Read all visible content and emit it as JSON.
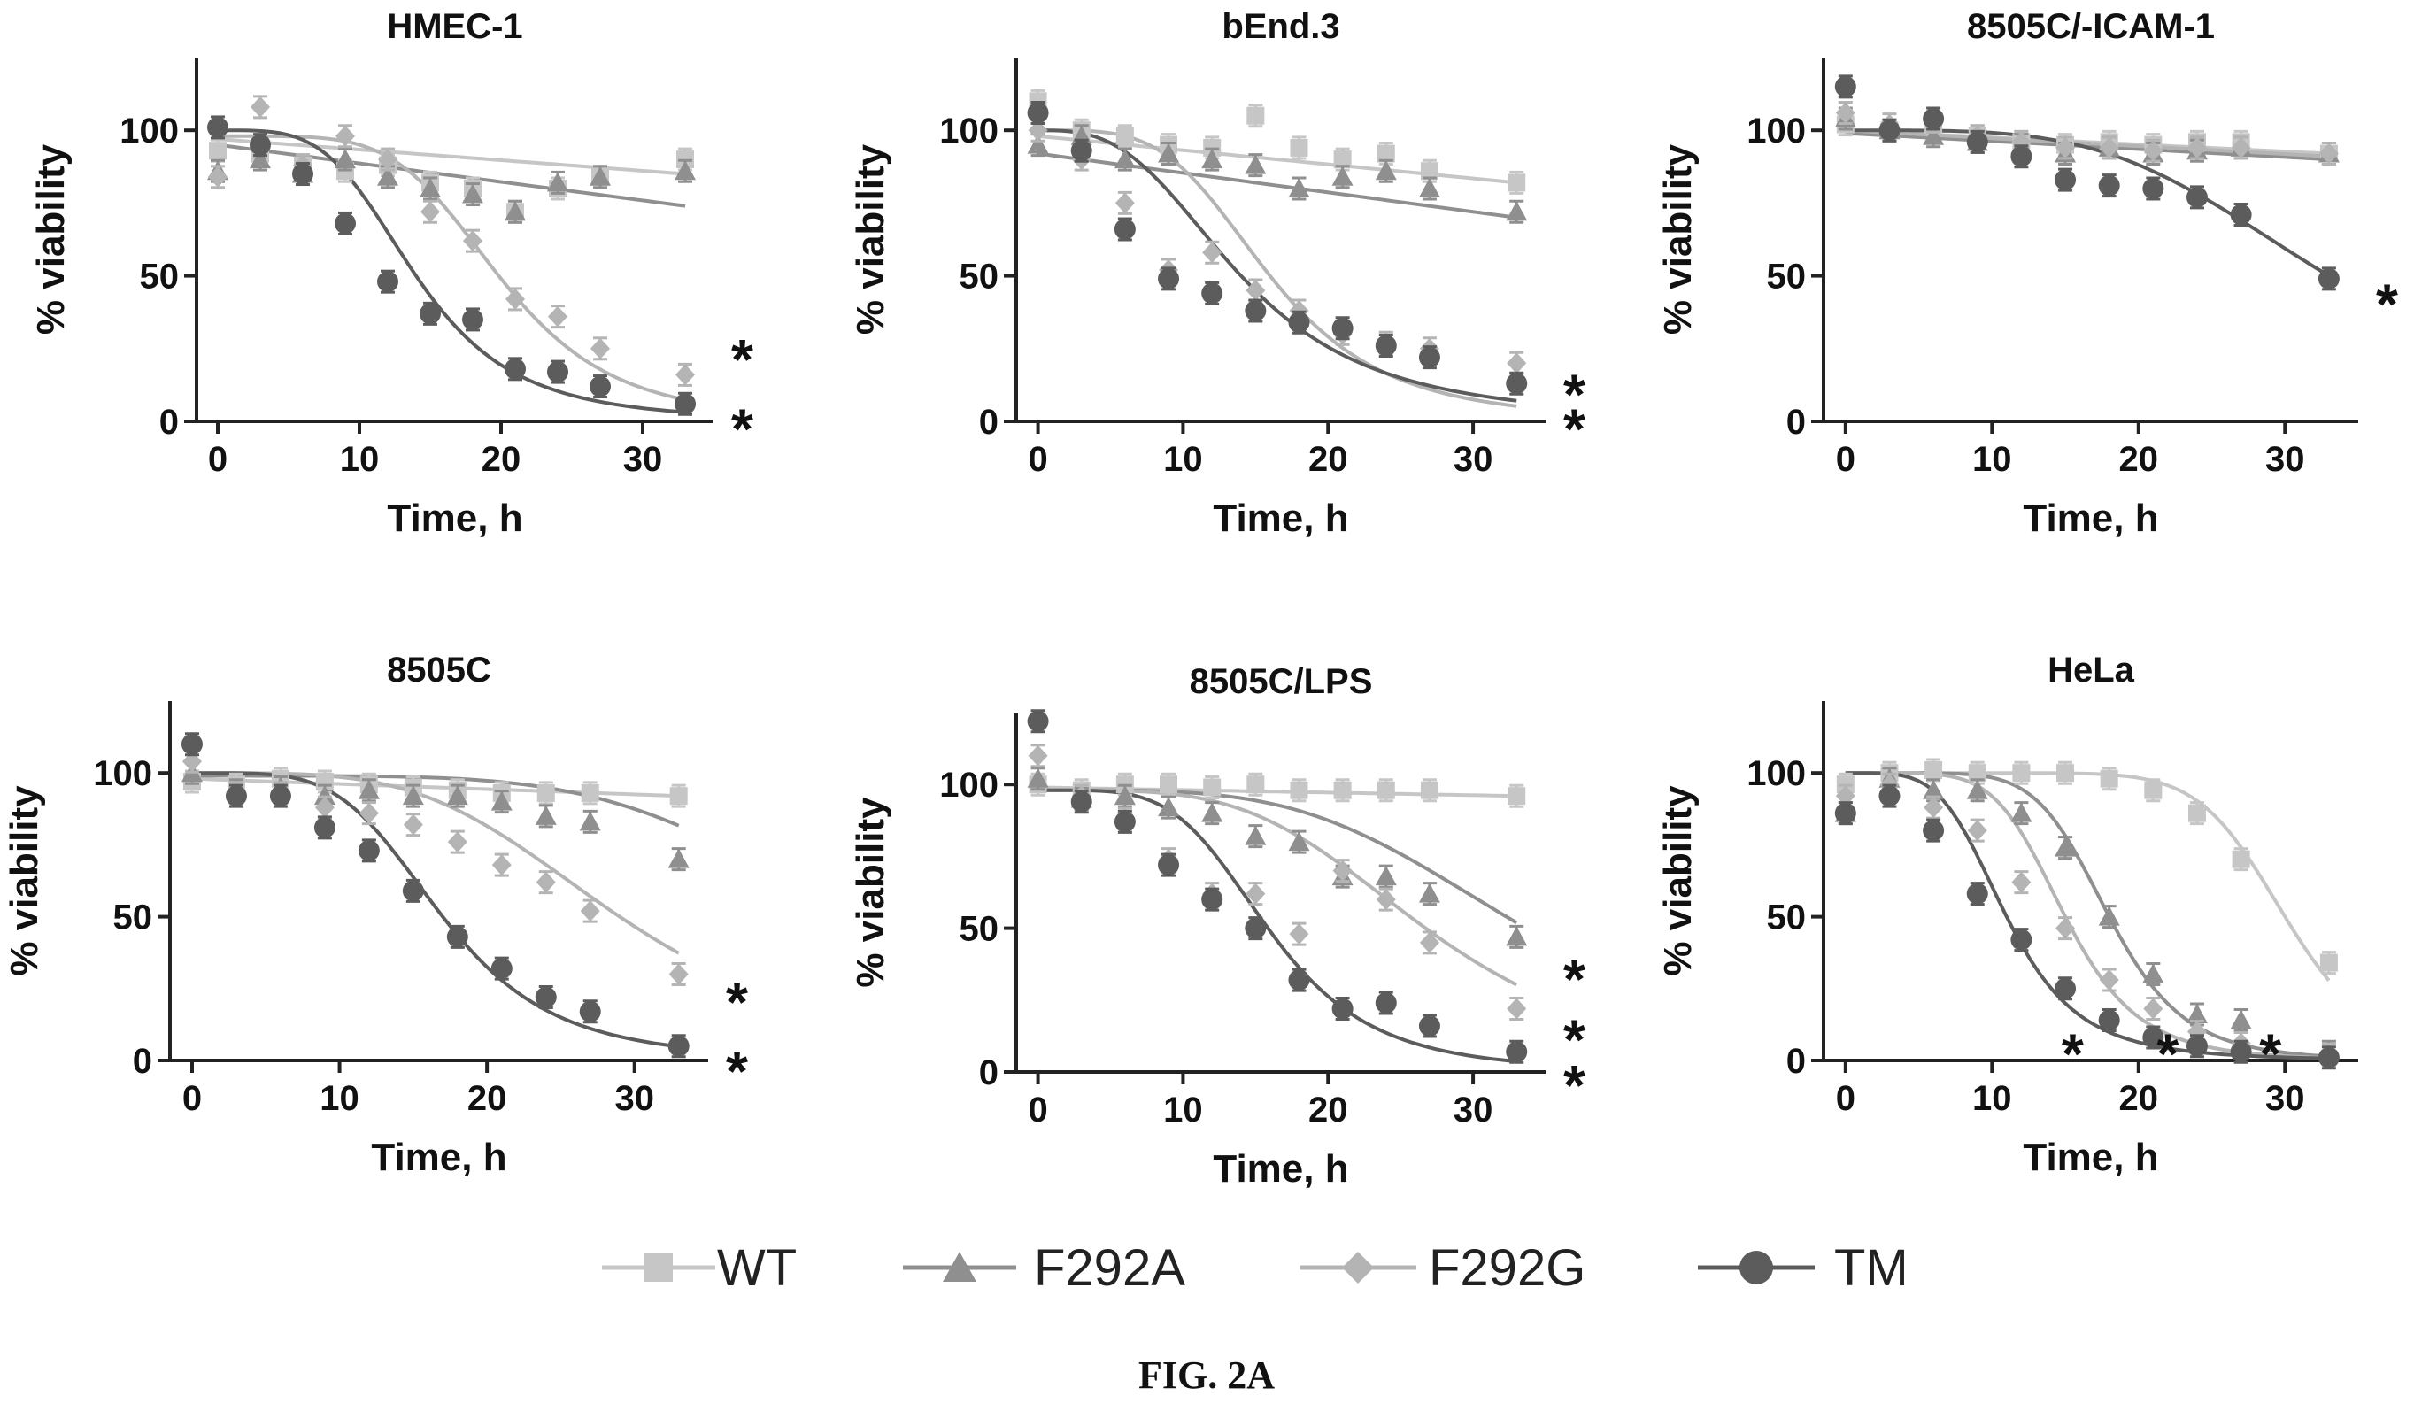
{
  "figure": {
    "caption": "FIG. 2A"
  },
  "legend": [
    {
      "label": "WT",
      "color": "#c6c6c6",
      "marker": "square"
    },
    {
      "label": "F292A",
      "color": "#8f8f8f",
      "marker": "triangle"
    },
    {
      "label": "F292G",
      "color": "#b4b4b4",
      "marker": "diamond"
    },
    {
      "label": "TM",
      "color": "#5c5c5c",
      "marker": "circle"
    }
  ],
  "chart_data": [
    {
      "type": "scatter",
      "title": "HMEC-1",
      "xlabel": "Time, h",
      "ylabel": "% viability",
      "xlim": [
        -1.5,
        35
      ],
      "ylim": [
        0,
        125
      ],
      "xticks": [
        0,
        10,
        20,
        30
      ],
      "yticks": [
        0,
        50,
        100
      ],
      "x": [
        0,
        3,
        6,
        9,
        12,
        15,
        18,
        21,
        24,
        27,
        33
      ],
      "series": [
        {
          "name": "WT",
          "values": [
            93,
            92,
            88,
            86,
            88,
            82,
            80,
            72,
            80,
            84,
            90
          ],
          "fit": [
            97,
            85,
            0,
            1
          ]
        },
        {
          "name": "F292A",
          "values": [
            86,
            90,
            85,
            90,
            84,
            80,
            78,
            72,
            82,
            84,
            86
          ],
          "fit": [
            95,
            74,
            0,
            1
          ]
        },
        {
          "name": "F292G",
          "values": [
            84,
            108,
            88,
            98,
            90,
            72,
            62,
            42,
            36,
            25,
            16
          ],
          "fit": [
            98,
            0,
            20,
            5
          ]
        },
        {
          "name": "TM",
          "values": [
            101,
            95,
            85,
            68,
            48,
            37,
            35,
            18,
            17,
            12,
            6
          ],
          "fit": [
            100,
            0,
            14,
            4
          ]
        }
      ],
      "stars": [
        {
          "label": "*",
          "y": 25,
          "series": "F292G"
        },
        {
          "label": "*",
          "y": 1,
          "series": "TM"
        }
      ]
    },
    {
      "type": "scatter",
      "title": "bEnd.3",
      "xlabel": "Time, h",
      "ylabel": "% viability",
      "xlim": [
        -1.5,
        35
      ],
      "ylim": [
        0,
        125
      ],
      "xticks": [
        0,
        10,
        20,
        30
      ],
      "yticks": [
        0,
        50,
        100
      ],
      "x": [
        0,
        3,
        6,
        9,
        12,
        15,
        18,
        21,
        24,
        27,
        33
      ],
      "series": [
        {
          "name": "WT",
          "values": [
            110,
            100,
            98,
            95,
            94,
            105,
            94,
            90,
            92,
            86,
            82
          ],
          "fit": [
            98,
            82,
            0,
            1
          ]
        },
        {
          "name": "F292A",
          "values": [
            95,
            98,
            90,
            92,
            90,
            88,
            80,
            84,
            86,
            80,
            72
          ],
          "fit": [
            92,
            70,
            0,
            1
          ]
        },
        {
          "name": "F292G",
          "values": [
            100,
            90,
            75,
            52,
            58,
            45,
            38,
            30,
            27,
            25,
            20
          ],
          "fit": [
            100,
            0,
            16,
            4
          ]
        },
        {
          "name": "TM",
          "values": [
            106,
            93,
            66,
            49,
            44,
            38,
            34,
            32,
            26,
            22,
            13
          ],
          "fit": [
            100,
            0,
            14,
            3
          ]
        }
      ],
      "stars": [
        {
          "label": "*",
          "y": 13,
          "series": "F292G"
        },
        {
          "label": "*",
          "y": 1,
          "series": "TM"
        }
      ]
    },
    {
      "type": "scatter",
      "title": "8505C/-ICAM-1",
      "xlabel": "Time, h",
      "ylabel": "% viability",
      "xlim": [
        -1.5,
        35
      ],
      "ylim": [
        0,
        125
      ],
      "xticks": [
        0,
        10,
        20,
        30
      ],
      "yticks": [
        0,
        50,
        100
      ],
      "x": [
        0,
        3,
        6,
        9,
        12,
        15,
        18,
        21,
        24,
        27,
        33
      ],
      "series": [
        {
          "name": "WT",
          "values": [
            102,
            100,
            102,
            98,
            96,
            95,
            96,
            95,
            96,
            96,
            92
          ],
          "fit": [
            100,
            92,
            0,
            1
          ]
        },
        {
          "name": "F292A",
          "values": [
            104,
            100,
            98,
            96,
            95,
            92,
            94,
            92,
            93,
            94,
            92
          ],
          "fit": [
            99,
            90,
            0,
            1
          ]
        },
        {
          "name": "F292G",
          "values": [
            106,
            102,
            103,
            98,
            96,
            94,
            94,
            93,
            94,
            94,
            92
          ],
          "fit": [
            100,
            91,
            0,
            1
          ]
        },
        {
          "name": "TM",
          "values": [
            115,
            100,
            104,
            96,
            91,
            83,
            81,
            80,
            77,
            71,
            49
          ],
          "fit": [
            100,
            0,
            33,
            4
          ]
        }
      ],
      "stars": [
        {
          "label": "*",
          "y": 44,
          "series": "TM"
        }
      ]
    },
    {
      "type": "scatter",
      "title": "8505C",
      "xlabel": "Time, h",
      "ylabel": "% viability",
      "xlim": [
        -1.5,
        35
      ],
      "ylim": [
        0,
        125
      ],
      "xticks": [
        0,
        10,
        20,
        30
      ],
      "yticks": [
        0,
        50,
        100
      ],
      "x": [
        0,
        3,
        6,
        9,
        12,
        15,
        18,
        21,
        24,
        27,
        33
      ],
      "series": [
        {
          "name": "WT",
          "values": [
            97,
            96,
            98,
            97,
            96,
            95,
            94,
            93,
            93,
            93,
            92
          ],
          "fit": [
            98,
            92,
            0,
            1
          ]
        },
        {
          "name": "F292A",
          "values": [
            100,
            94,
            95,
            92,
            94,
            92,
            92,
            90,
            85,
            83,
            70
          ],
          "fit": [
            99,
            0,
            45,
            5
          ]
        },
        {
          "name": "F292G",
          "values": [
            104,
            93,
            93,
            88,
            86,
            82,
            76,
            68,
            62,
            52,
            30
          ],
          "fit": [
            100,
            0,
            29,
            4
          ]
        },
        {
          "name": "TM",
          "values": [
            110,
            92,
            92,
            81,
            73,
            59,
            43,
            32,
            22,
            17,
            5
          ],
          "fit": [
            100,
            0,
            17,
            4.5
          ]
        }
      ],
      "stars": [
        {
          "label": "*",
          "y": 24,
          "series": "F292G"
        },
        {
          "label": "*",
          "y": 0,
          "series": "TM"
        }
      ]
    },
    {
      "type": "scatter",
      "title": "8505C/LPS",
      "xlabel": "Time, h",
      "ylabel": "% viability",
      "xlim": [
        -1.5,
        35
      ],
      "ylim": [
        0,
        125
      ],
      "xticks": [
        0,
        10,
        20,
        30
      ],
      "yticks": [
        0,
        50,
        100
      ],
      "x": [
        0,
        3,
        6,
        9,
        12,
        15,
        18,
        21,
        24,
        27,
        33
      ],
      "series": [
        {
          "name": "WT",
          "values": [
            100,
            98,
            100,
            100,
            99,
            100,
            98,
            98,
            98,
            98,
            96
          ],
          "fit": [
            99,
            96,
            0,
            1
          ]
        },
        {
          "name": "F292A",
          "values": [
            102,
            95,
            96,
            92,
            90,
            82,
            80,
            68,
            68,
            62,
            47
          ],
          "fit": [
            98,
            0,
            34,
            4
          ]
        },
        {
          "name": "F292G",
          "values": [
            110,
            96,
            88,
            74,
            62,
            62,
            48,
            70,
            60,
            45,
            22
          ],
          "fit": [
            98,
            0,
            27,
            4
          ]
        },
        {
          "name": "TM",
          "values": [
            122,
            94,
            87,
            72,
            60,
            50,
            32,
            22,
            24,
            16,
            7
          ],
          "fit": [
            98,
            0,
            16,
            4.5
          ]
        }
      ],
      "stars": [
        {
          "label": "*",
          "y": 36,
          "series": "F292A"
        },
        {
          "label": "*",
          "y": 15,
          "series": "F292G"
        },
        {
          "label": "*",
          "y": -1,
          "series": "TM"
        }
      ]
    },
    {
      "type": "scatter",
      "title": "HeLa",
      "xlabel": "Time, h",
      "ylabel": "% viability",
      "xlim": [
        -1.5,
        35
      ],
      "ylim": [
        0,
        125
      ],
      "xticks": [
        0,
        10,
        20,
        30
      ],
      "yticks": [
        0,
        50,
        100
      ],
      "x": [
        0,
        3,
        6,
        9,
        12,
        15,
        18,
        21,
        24,
        27,
        33
      ],
      "series": [
        {
          "name": "WT",
          "values": [
            96,
            100,
            101,
            100,
            100,
            100,
            98,
            94,
            86,
            70,
            34
          ],
          "fit": [
            100,
            0,
            30,
            10
          ]
        },
        {
          "name": "F292A",
          "values": [
            86,
            98,
            94,
            94,
            86,
            74,
            50,
            30,
            16,
            14,
            3
          ],
          "fit": [
            100,
            0,
            18,
            7
          ]
        },
        {
          "name": "F292G",
          "values": [
            92,
            96,
            88,
            80,
            62,
            46,
            28,
            18,
            10,
            6,
            2
          ],
          "fit": [
            100,
            0,
            15,
            6
          ]
        },
        {
          "name": "TM",
          "values": [
            86,
            92,
            80,
            58,
            42,
            25,
            14,
            8,
            5,
            3,
            1
          ],
          "fit": [
            100,
            0,
            11,
            4.5
          ]
        }
      ],
      "stars": [
        {
          "label": "*",
          "x": 15.5,
          "y": 6
        },
        {
          "label": "*",
          "x": 22,
          "y": 6
        },
        {
          "label": "*",
          "x": 29,
          "y": 6
        }
      ]
    }
  ]
}
